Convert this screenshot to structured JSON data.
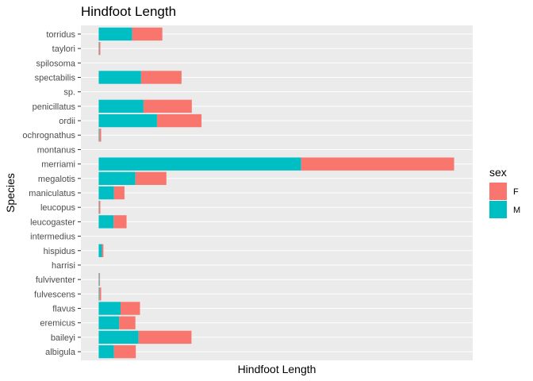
{
  "chart_data": {
    "type": "bar",
    "orientation": "horizontal",
    "stacked": true,
    "title": "Hindfoot Length",
    "xlabel": "Hindfoot Length",
    "ylabel": "Species",
    "x_ticks_shown": false,
    "categories": [
      "albigula",
      "baileyi",
      "eremicus",
      "flavus",
      "fulvescens",
      "fulviventer",
      "harrisi",
      "hispidus",
      "intermedius",
      "leucogaster",
      "leucopus",
      "maniculatus",
      "megalotis",
      "merriami",
      "montanus",
      "ochrognathus",
      "ordii",
      "penicillatus",
      "sp.",
      "spectabilis",
      "spilosoma",
      "taylori",
      "torridus"
    ],
    "series": [
      {
        "name": "M",
        "color": "#00BFC4",
        "values": [
          1880,
          4930,
          2530,
          2700,
          80,
          80,
          0,
          400,
          0,
          1840,
          40,
          1880,
          4530,
          25000,
          0,
          80,
          7200,
          5530,
          0,
          5230,
          0,
          40,
          4130
        ]
      },
      {
        "name": "F",
        "color": "#F8766D",
        "values": [
          2700,
          6530,
          2000,
          2400,
          220,
          80,
          0,
          180,
          0,
          1600,
          160,
          1300,
          3830,
          18900,
          0,
          220,
          5500,
          5970,
          0,
          5000,
          0,
          160,
          3730
        ]
      }
    ],
    "xlim": [
      -2200,
      46200
    ],
    "grid": true,
    "legend": {
      "title": "sex",
      "placement": "right",
      "entries": [
        {
          "label": "F",
          "color": "#F8766D"
        },
        {
          "label": "M",
          "color": "#00BFC4"
        }
      ]
    }
  }
}
